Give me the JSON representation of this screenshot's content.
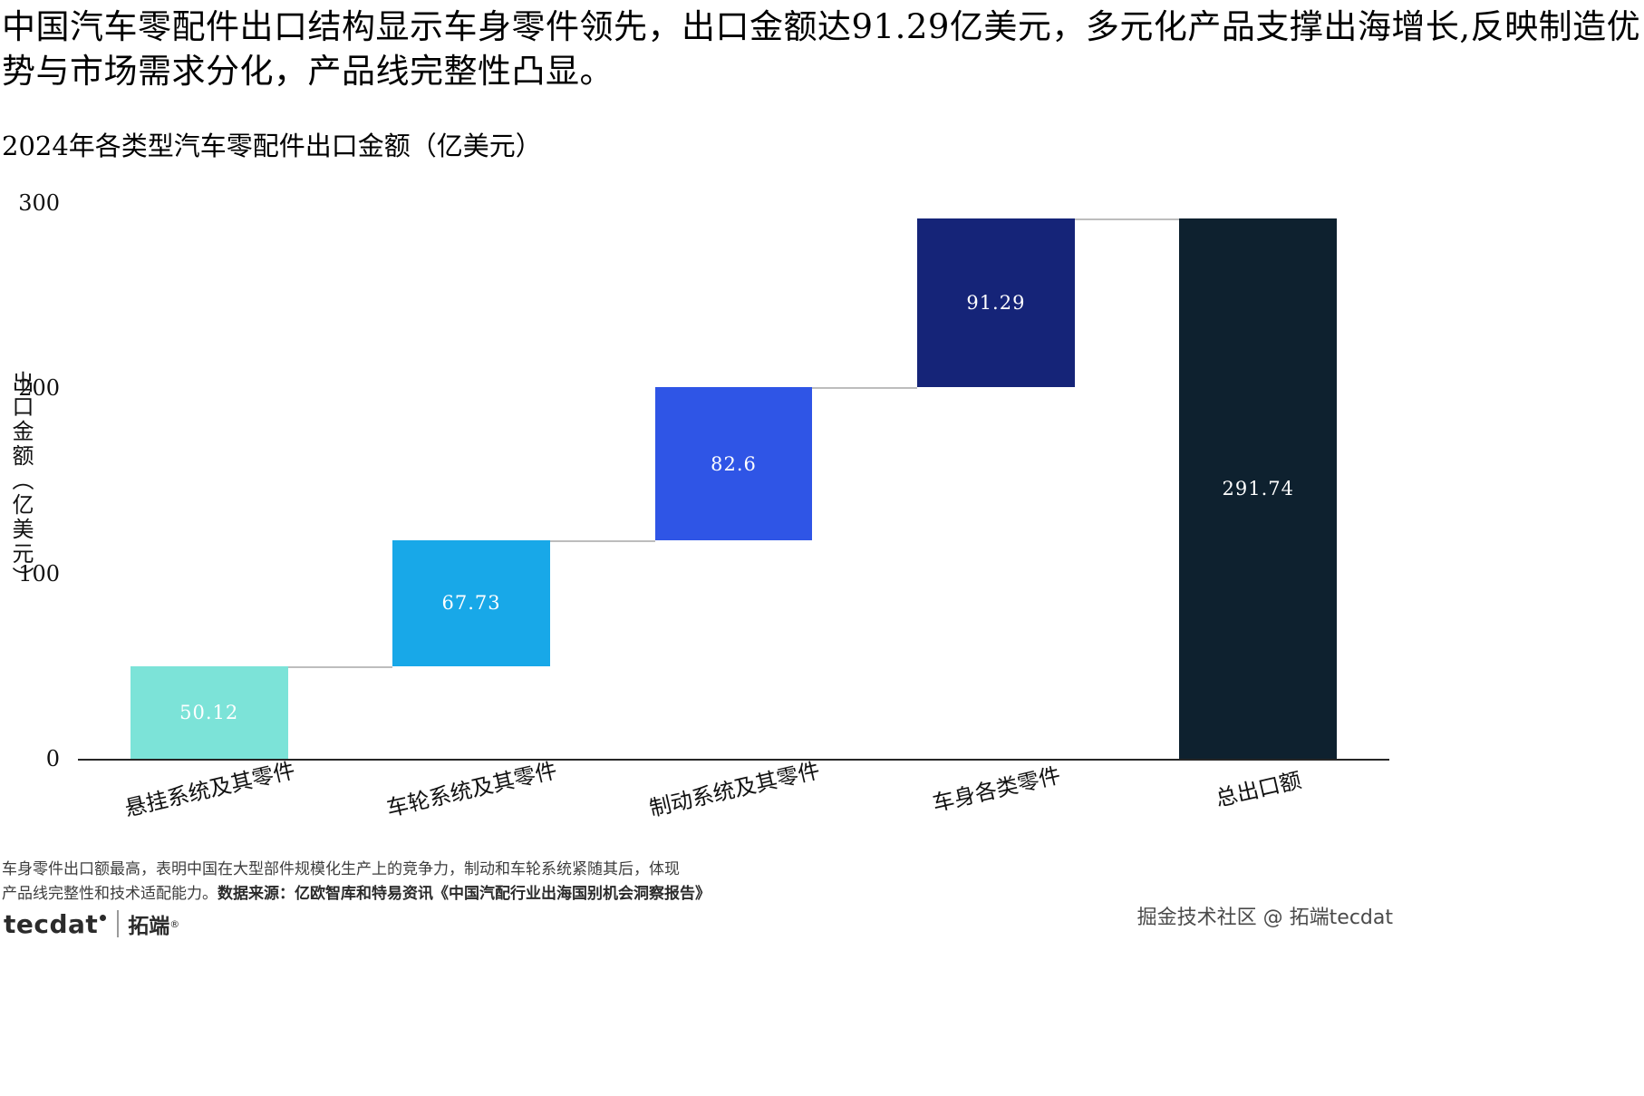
{
  "header": {
    "title": "中国汽车零配件出口结构显示车身零件领先，出口金额达91.29亿美元，多元化产品支撑出海增长,反映制造优势与市场需求分化，产品线完整性凸显。",
    "subtitle": "2024年各类型汽车零配件出口金额（亿美元）"
  },
  "chart_data": {
    "type": "bar",
    "subtype": "waterfall",
    "title": "2024年各类型汽车零配件出口金额（亿美元）",
    "categories": [
      "悬挂系统及其零件",
      "车轮系统及其零件",
      "制动系统及其零件",
      "车身各类零件",
      "总出口额"
    ],
    "values": [
      50.12,
      67.73,
      82.6,
      91.29,
      291.74
    ],
    "starts": [
      0,
      50.12,
      117.85,
      200.45,
      0
    ],
    "labels": [
      "50.12",
      "67.73",
      "82.6",
      "91.29",
      "291.74"
    ],
    "colors": [
      "#7ce3d8",
      "#18a8e8",
      "#2f55e6",
      "#152478",
      "#0e212f"
    ],
    "connector_color": "#bdbdbd",
    "ylabel": "出口金额（亿美元）",
    "xlabel": "",
    "yticks": [
      0,
      100,
      200,
      300
    ],
    "ylim": [
      0,
      300
    ],
    "grid": false,
    "legend": false
  },
  "footer": {
    "note_line1": "车身零件出口额最高，表明中国在大型部件规模化生产上的竞争力，制动和车轮系统紧随其后，体现",
    "note_line2": "产品线完整性和技术适配能力。",
    "note_source": "数据来源：亿欧智库和特易资讯《中国汽配行业出海国别机会洞察报告》",
    "logo_name": "tecdat",
    "logo_cn": "拓端",
    "logo_reg": "®",
    "credit": "掘金技术社区 @ 拓端tecdat"
  }
}
